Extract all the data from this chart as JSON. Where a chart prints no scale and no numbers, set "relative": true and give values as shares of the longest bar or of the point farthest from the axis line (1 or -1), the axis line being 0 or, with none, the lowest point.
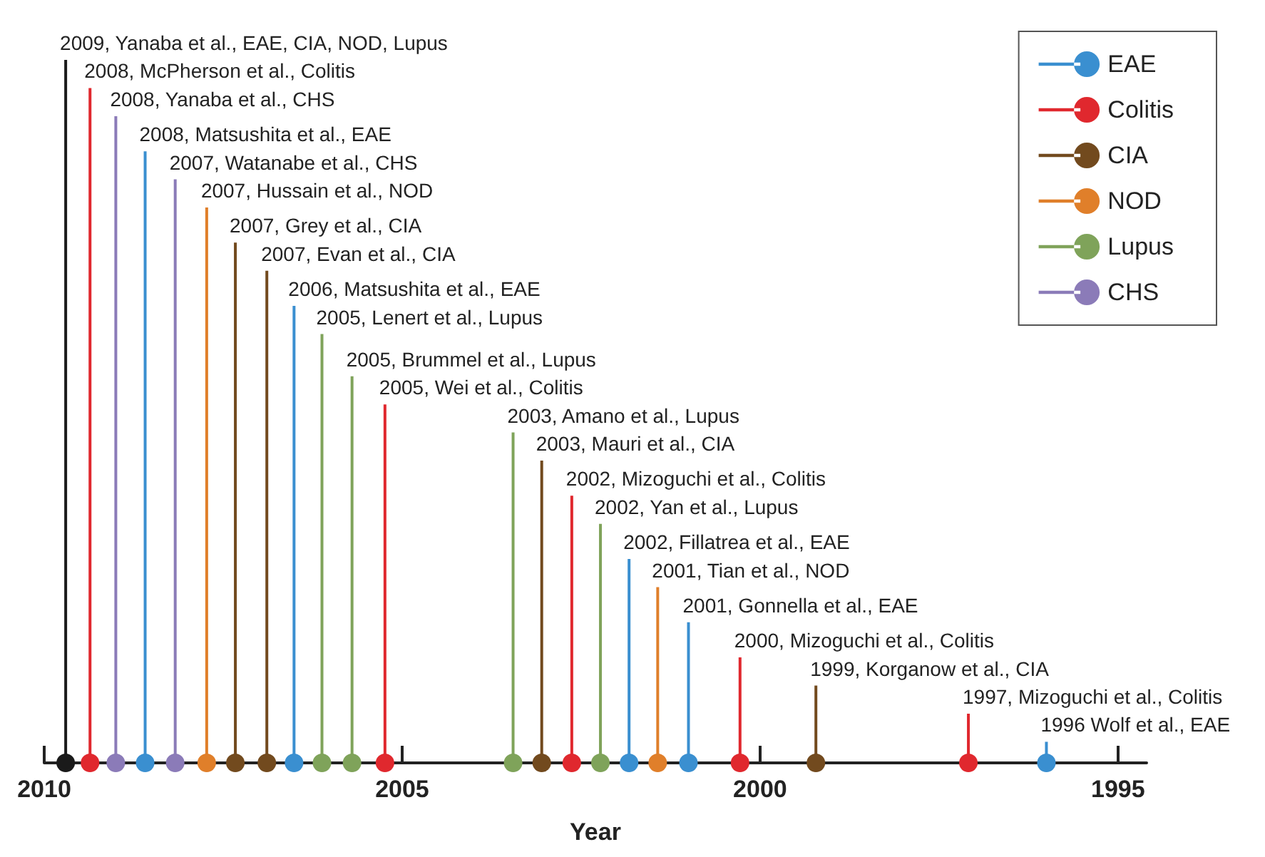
{
  "chart_data": {
    "type": "bar",
    "relative": true,
    "xlabel": "Year",
    "xlim": [
      2010,
      1994.6
    ],
    "xticks": [
      2010,
      2005,
      2000,
      1995
    ],
    "legend": "top right",
    "grid": false,
    "series": [
      {
        "name": "EAE",
        "color": "#3a8fd0",
        "x": [
          2008.59,
          2006.51,
          2001.83,
          2001.0,
          1996.0
        ],
        "values": [
          0.87,
          0.65,
          0.29,
          0.2,
          0.03
        ]
      },
      {
        "name": "Colitis",
        "color": "#e0282e",
        "x": [
          2009.36,
          2005.24,
          2002.63,
          2000.28,
          1997.09
        ],
        "values": [
          0.96,
          0.51,
          0.38,
          0.15,
          0.07
        ]
      },
      {
        "name": "CIA",
        "color": "#724a1e",
        "x": [
          2007.33,
          2006.89,
          2003.05,
          1999.22
        ],
        "values": [
          0.74,
          0.7,
          0.43,
          0.11
        ]
      },
      {
        "name": "NOD",
        "color": "#e07f2a",
        "x": [
          2007.73,
          2001.43
        ],
        "values": [
          0.79,
          0.25
        ]
      },
      {
        "name": "Lupus",
        "color": "#7fa35a",
        "x": [
          2006.12,
          2005.7,
          2003.45,
          2002.23
        ],
        "values": [
          0.61,
          0.55,
          0.47,
          0.34
        ]
      },
      {
        "name": "CHS",
        "color": "#8b7bb8",
        "x": [
          2009.0,
          2008.17
        ],
        "values": [
          0.92,
          0.83
        ]
      },
      {
        "color": "#1a1a1a",
        "x": [
          2009.7
        ],
        "values": [
          1.0
        ]
      }
    ],
    "annotations": [
      {
        "text": "2009, Yanaba et al., EAE, CIA, NOD, Lupus",
        "x": 2009.7,
        "y": 1.0
      },
      {
        "text": "2008, McPherson et al., Colitis",
        "x": 2009.36,
        "y": 0.96
      },
      {
        "text": "2008, Yanaba et al., CHS",
        "x": 2009.0,
        "y": 0.92
      },
      {
        "text": "2008, Matsushita et al., EAE",
        "x": 2008.59,
        "y": 0.87
      },
      {
        "text": "2007, Watanabe et al., CHS",
        "x": 2008.17,
        "y": 0.83
      },
      {
        "text": "2007, Hussain et al., NOD",
        "x": 2007.73,
        "y": 0.79
      },
      {
        "text": "2007, Grey et al., CIA",
        "x": 2007.33,
        "y": 0.74
      },
      {
        "text": "2007, Evan et al., CIA",
        "x": 2006.89,
        "y": 0.7
      },
      {
        "text": "2006, Matsushita et al., EAE",
        "x": 2006.51,
        "y": 0.65
      },
      {
        "text": "2005, Lenert et al., Lupus",
        "x": 2006.12,
        "y": 0.61
      },
      {
        "text": "2005, Brummel et al., Lupus",
        "x": 2005.7,
        "y": 0.55
      },
      {
        "text": "2005, Wei et al., Colitis",
        "x": 2005.24,
        "y": 0.51
      },
      {
        "text": "2003, Amano et al., Lupus",
        "x": 2003.45,
        "y": 0.47
      },
      {
        "text": "2003, Mauri et al., CIA",
        "x": 2003.05,
        "y": 0.43
      },
      {
        "text": "2002, Mizoguchi et al., Colitis",
        "x": 2002.63,
        "y": 0.38
      },
      {
        "text": "2002, Yan et al., Lupus",
        "x": 2002.23,
        "y": 0.34
      },
      {
        "text": "2002, Fillatrea et al., EAE",
        "x": 2001.83,
        "y": 0.29
      },
      {
        "text": "2001, Tian et al., NOD",
        "x": 2001.43,
        "y": 0.25
      },
      {
        "text": "2001, Gonnella et al., EAE",
        "x": 2001.0,
        "y": 0.2
      },
      {
        "text": "2000, Mizoguchi et al., Colitis",
        "x": 2000.28,
        "y": 0.15
      },
      {
        "text": "1999, Korganow et al., CIA",
        "x": 1999.22,
        "y": 0.11
      },
      {
        "text": "1997, Mizoguchi et al., Colitis",
        "x": 1997.09,
        "y": 0.07
      },
      {
        "text": "1996 Wolf et al., EAE",
        "x": 1996.0,
        "y": 0.03
      }
    ]
  }
}
